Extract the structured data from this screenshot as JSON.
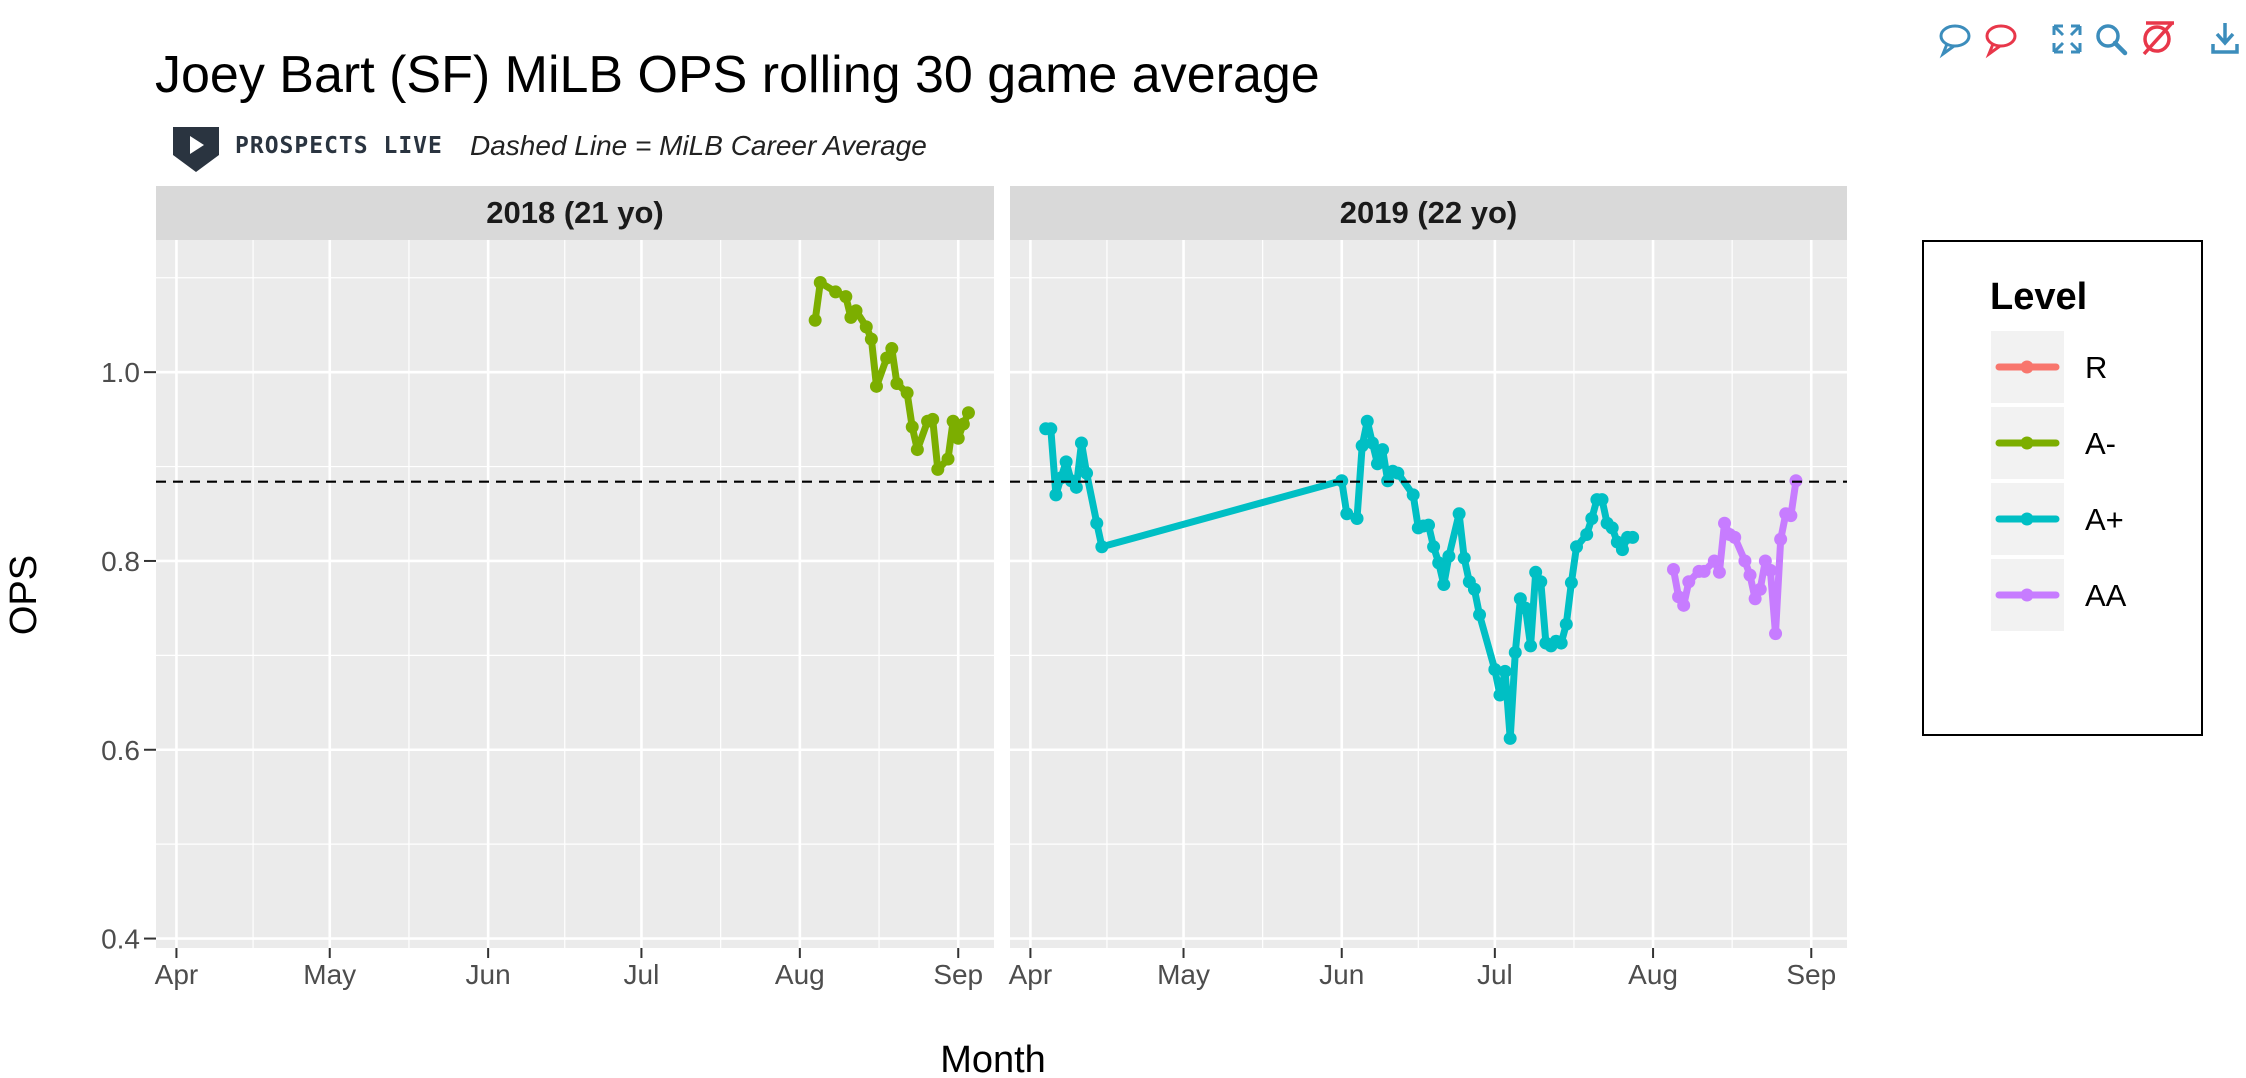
{
  "toolbar": {
    "icons": [
      "show-tooltip-icon",
      "compare-tooltip-icon",
      "autoscale-icon",
      "zoom-icon",
      "reset-icon",
      "download-icon"
    ],
    "colors": {
      "blue": "#3c8dbc",
      "red": "#e8374a"
    }
  },
  "chart_data": {
    "type": "line",
    "title": "Joey Bart (SF) MiLB OPS rolling 30 game average",
    "subtitle": "Dashed Line = MiLB Career Average",
    "logo_text": "PROSPECTS LIVE",
    "xlabel": "Month",
    "ylabel": "OPS",
    "ylim": [
      0.39,
      1.14
    ],
    "y_ticks": [
      0.4,
      0.6,
      0.8,
      1.0
    ],
    "y_tick_labels": [
      "0.4",
      "0.6",
      "0.8",
      "1.0"
    ],
    "x_ticks": [
      "Apr",
      "May",
      "Jun",
      "Jul",
      "Aug",
      "Sep"
    ],
    "x_tick_days": [
      0,
      30,
      61,
      91,
      122,
      153
    ],
    "x_range_days": [
      -4,
      160
    ],
    "x_origin": "Apr 1",
    "career_average": 0.884,
    "legend": {
      "title": "Level",
      "entries": [
        {
          "label": "R",
          "color": "#F8766D"
        },
        {
          "label": "A-",
          "color": "#7CAE00"
        },
        {
          "label": "A+",
          "color": "#00BFC4"
        },
        {
          "label": "AA",
          "color": "#C77CFF"
        }
      ]
    },
    "colors": {
      "panel_bg": "#ebebeb",
      "strip_bg": "#d9d9d9",
      "grid": "#ffffff"
    },
    "panels": [
      {
        "label": "2018 (21 yo)",
        "series": [
          {
            "name": "A-",
            "color": "#7CAE00",
            "points": [
              [
                125,
                1.055
              ],
              [
                126,
                1.095
              ],
              [
                129,
                1.085
              ],
              [
                131,
                1.08
              ],
              [
                132,
                1.058
              ],
              [
                133,
                1.065
              ],
              [
                135,
                1.048
              ],
              [
                136,
                1.035
              ],
              [
                137,
                0.985
              ],
              [
                139,
                1.015
              ],
              [
                140,
                1.025
              ],
              [
                141,
                0.988
              ],
              [
                143,
                0.978
              ],
              [
                144,
                0.942
              ],
              [
                145,
                0.918
              ],
              [
                147,
                0.948
              ],
              [
                148,
                0.95
              ],
              [
                149,
                0.897
              ],
              [
                151,
                0.908
              ],
              [
                152,
                0.948
              ],
              [
                153,
                0.93
              ],
              [
                154,
                0.945
              ],
              [
                155,
                0.957
              ]
            ]
          }
        ]
      },
      {
        "label": "2019 (22 yo)",
        "series": [
          {
            "name": "A+",
            "color": "#00BFC4",
            "points": [
              [
                3,
                0.94
              ],
              [
                4,
                0.94
              ],
              [
                5,
                0.87
              ],
              [
                6,
                0.888
              ],
              [
                7,
                0.905
              ],
              [
                8,
                0.885
              ],
              [
                9,
                0.878
              ],
              [
                10,
                0.925
              ],
              [
                11,
                0.893
              ],
              [
                13,
                0.84
              ],
              [
                14,
                0.815
              ],
              [
                61,
                0.885
              ],
              [
                62,
                0.85
              ],
              [
                64,
                0.845
              ],
              [
                65,
                0.922
              ],
              [
                66,
                0.948
              ],
              [
                67,
                0.925
              ],
              [
                68,
                0.903
              ],
              [
                69,
                0.918
              ],
              [
                70,
                0.885
              ],
              [
                71,
                0.895
              ],
              [
                72,
                0.893
              ],
              [
                75,
                0.87
              ],
              [
                76,
                0.835
              ],
              [
                77,
                0.837
              ],
              [
                78,
                0.838
              ],
              [
                79,
                0.815
              ],
              [
                80,
                0.798
              ],
              [
                81,
                0.775
              ],
              [
                82,
                0.805
              ],
              [
                84,
                0.85
              ],
              [
                85,
                0.803
              ],
              [
                86,
                0.778
              ],
              [
                87,
                0.77
              ],
              [
                88,
                0.743
              ],
              [
                91,
                0.685
              ],
              [
                92,
                0.658
              ],
              [
                93,
                0.683
              ],
              [
                94,
                0.612
              ],
              [
                95,
                0.703
              ],
              [
                96,
                0.76
              ],
              [
                97,
                0.75
              ],
              [
                98,
                0.71
              ],
              [
                99,
                0.788
              ],
              [
                100,
                0.778
              ],
              [
                101,
                0.713
              ],
              [
                102,
                0.71
              ],
              [
                103,
                0.715
              ],
              [
                104,
                0.713
              ],
              [
                105,
                0.733
              ],
              [
                106,
                0.777
              ],
              [
                107,
                0.815
              ],
              [
                109,
                0.828
              ],
              [
                110,
                0.845
              ],
              [
                111,
                0.865
              ],
              [
                112,
                0.865
              ],
              [
                113,
                0.84
              ],
              [
                114,
                0.835
              ],
              [
                115,
                0.82
              ],
              [
                116,
                0.812
              ],
              [
                117,
                0.825
              ],
              [
                118,
                0.825
              ]
            ]
          },
          {
            "name": "AA",
            "color": "#C77CFF",
            "points": [
              [
                126,
                0.791
              ],
              [
                127,
                0.762
              ],
              [
                128,
                0.753
              ],
              [
                129,
                0.778
              ],
              [
                131,
                0.789
              ],
              [
                132,
                0.789
              ],
              [
                134,
                0.8
              ],
              [
                135,
                0.788
              ],
              [
                136,
                0.84
              ],
              [
                137,
                0.828
              ],
              [
                138,
                0.825
              ],
              [
                140,
                0.8
              ],
              [
                141,
                0.785
              ],
              [
                142,
                0.76
              ],
              [
                143,
                0.77
              ],
              [
                144,
                0.8
              ],
              [
                145,
                0.79
              ],
              [
                146,
                0.723
              ],
              [
                147,
                0.823
              ],
              [
                148,
                0.85
              ],
              [
                149,
                0.848
              ],
              [
                150,
                0.885
              ]
            ]
          }
        ]
      }
    ]
  }
}
